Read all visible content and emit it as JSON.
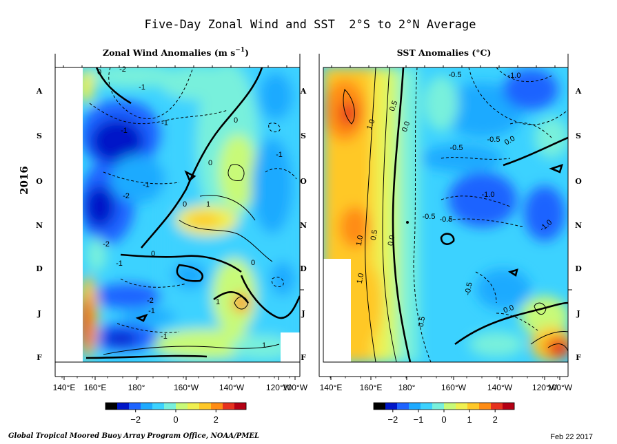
{
  "title": "Five-Day Zonal Wind and SST  2°S to 2°N Average",
  "year_label": "2016",
  "credit": "Global Tropical Moored Buoy Array Program Office, NOAA/PMEL",
  "date": "Feb 22 2017",
  "colors": {
    "scale": [
      "#000000",
      "#0016c8",
      "#1e64ff",
      "#1eaaff",
      "#3cd2ff",
      "#78f0dc",
      "#c8fa78",
      "#f0f050",
      "#ffc828",
      "#ff8c14",
      "#e6321e",
      "#b40014"
    ],
    "contour": "#000000",
    "missing": "#ffffff"
  },
  "chart_data": [
    {
      "type": "heatmap",
      "title": "Zonal Wind Anomalies (m s",
      "title_sup": "−1",
      "title_end": ")",
      "x_ticks": [
        "140°E",
        "160°E",
        "180°",
        "160°W",
        "140°W",
        "120°W",
        "100°W"
      ],
      "y_ticks": [
        "A",
        "S",
        "O",
        "N",
        "D",
        "J",
        "F"
      ],
      "xlim": [
        140,
        265
      ],
      "colorbar": {
        "ticks": [
          "−2",
          "0",
          "2"
        ],
        "range": [
          -3.5,
          3.5
        ]
      },
      "contour_labels": [
        "-2",
        "-1",
        "-1",
        "-1",
        "-1",
        "-2",
        "-2",
        "0",
        "0",
        "0",
        "0",
        "0",
        "1",
        "1",
        "-1",
        "-1",
        "-2",
        "-1",
        "1",
        "0",
        "-1"
      ],
      "grid": false
    },
    {
      "type": "heatmap",
      "title": "SST Anomalies (°C)",
      "x_ticks": [
        "140°E",
        "160°E",
        "180°",
        "160°W",
        "140°W",
        "120°W",
        "100°W"
      ],
      "y_ticks": [
        "A",
        "S",
        "O",
        "N",
        "D",
        "J",
        "F"
      ],
      "xlim": [
        137,
        265
      ],
      "colorbar": {
        "ticks": [
          "−2",
          "−1",
          "0",
          "1",
          "2"
        ],
        "range": [
          -2.75,
          2.75
        ]
      },
      "contour_labels": [
        "-0.5",
        "-1.0",
        "0.5",
        "0.0",
        "1.0",
        "-0.5",
        "-0.5",
        "0.0",
        "-0.5",
        "-1.0",
        "-0.5",
        "-1.0",
        "1.0",
        "0.5",
        "0.0",
        "1.0",
        "-0.5",
        "0.5",
        "0.0"
      ],
      "grid": false
    }
  ]
}
